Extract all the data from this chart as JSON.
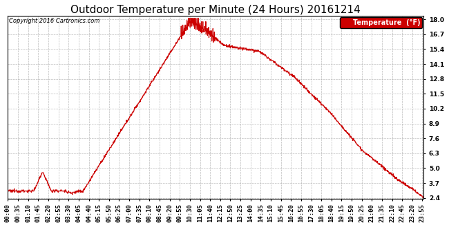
{
  "title": "Outdoor Temperature per Minute (24 Hours) 20161214",
  "copyright_text": "Copyright 2016 Cartronics.com",
  "line_color": "#cc0000",
  "background_color": "#ffffff",
  "grid_color": "#aaaaaa",
  "yticks": [
    2.4,
    3.7,
    5.0,
    6.3,
    7.6,
    8.9,
    10.2,
    11.5,
    12.8,
    14.1,
    15.4,
    16.7,
    18.0
  ],
  "ymin": 2.4,
  "ymax": 18.0,
  "legend_label": "Temperature  (°F)",
  "legend_bg": "#cc0000",
  "legend_text_color": "#ffffff",
  "title_fontsize": 11,
  "tick_fontsize": 6.5,
  "line_width": 0.9
}
